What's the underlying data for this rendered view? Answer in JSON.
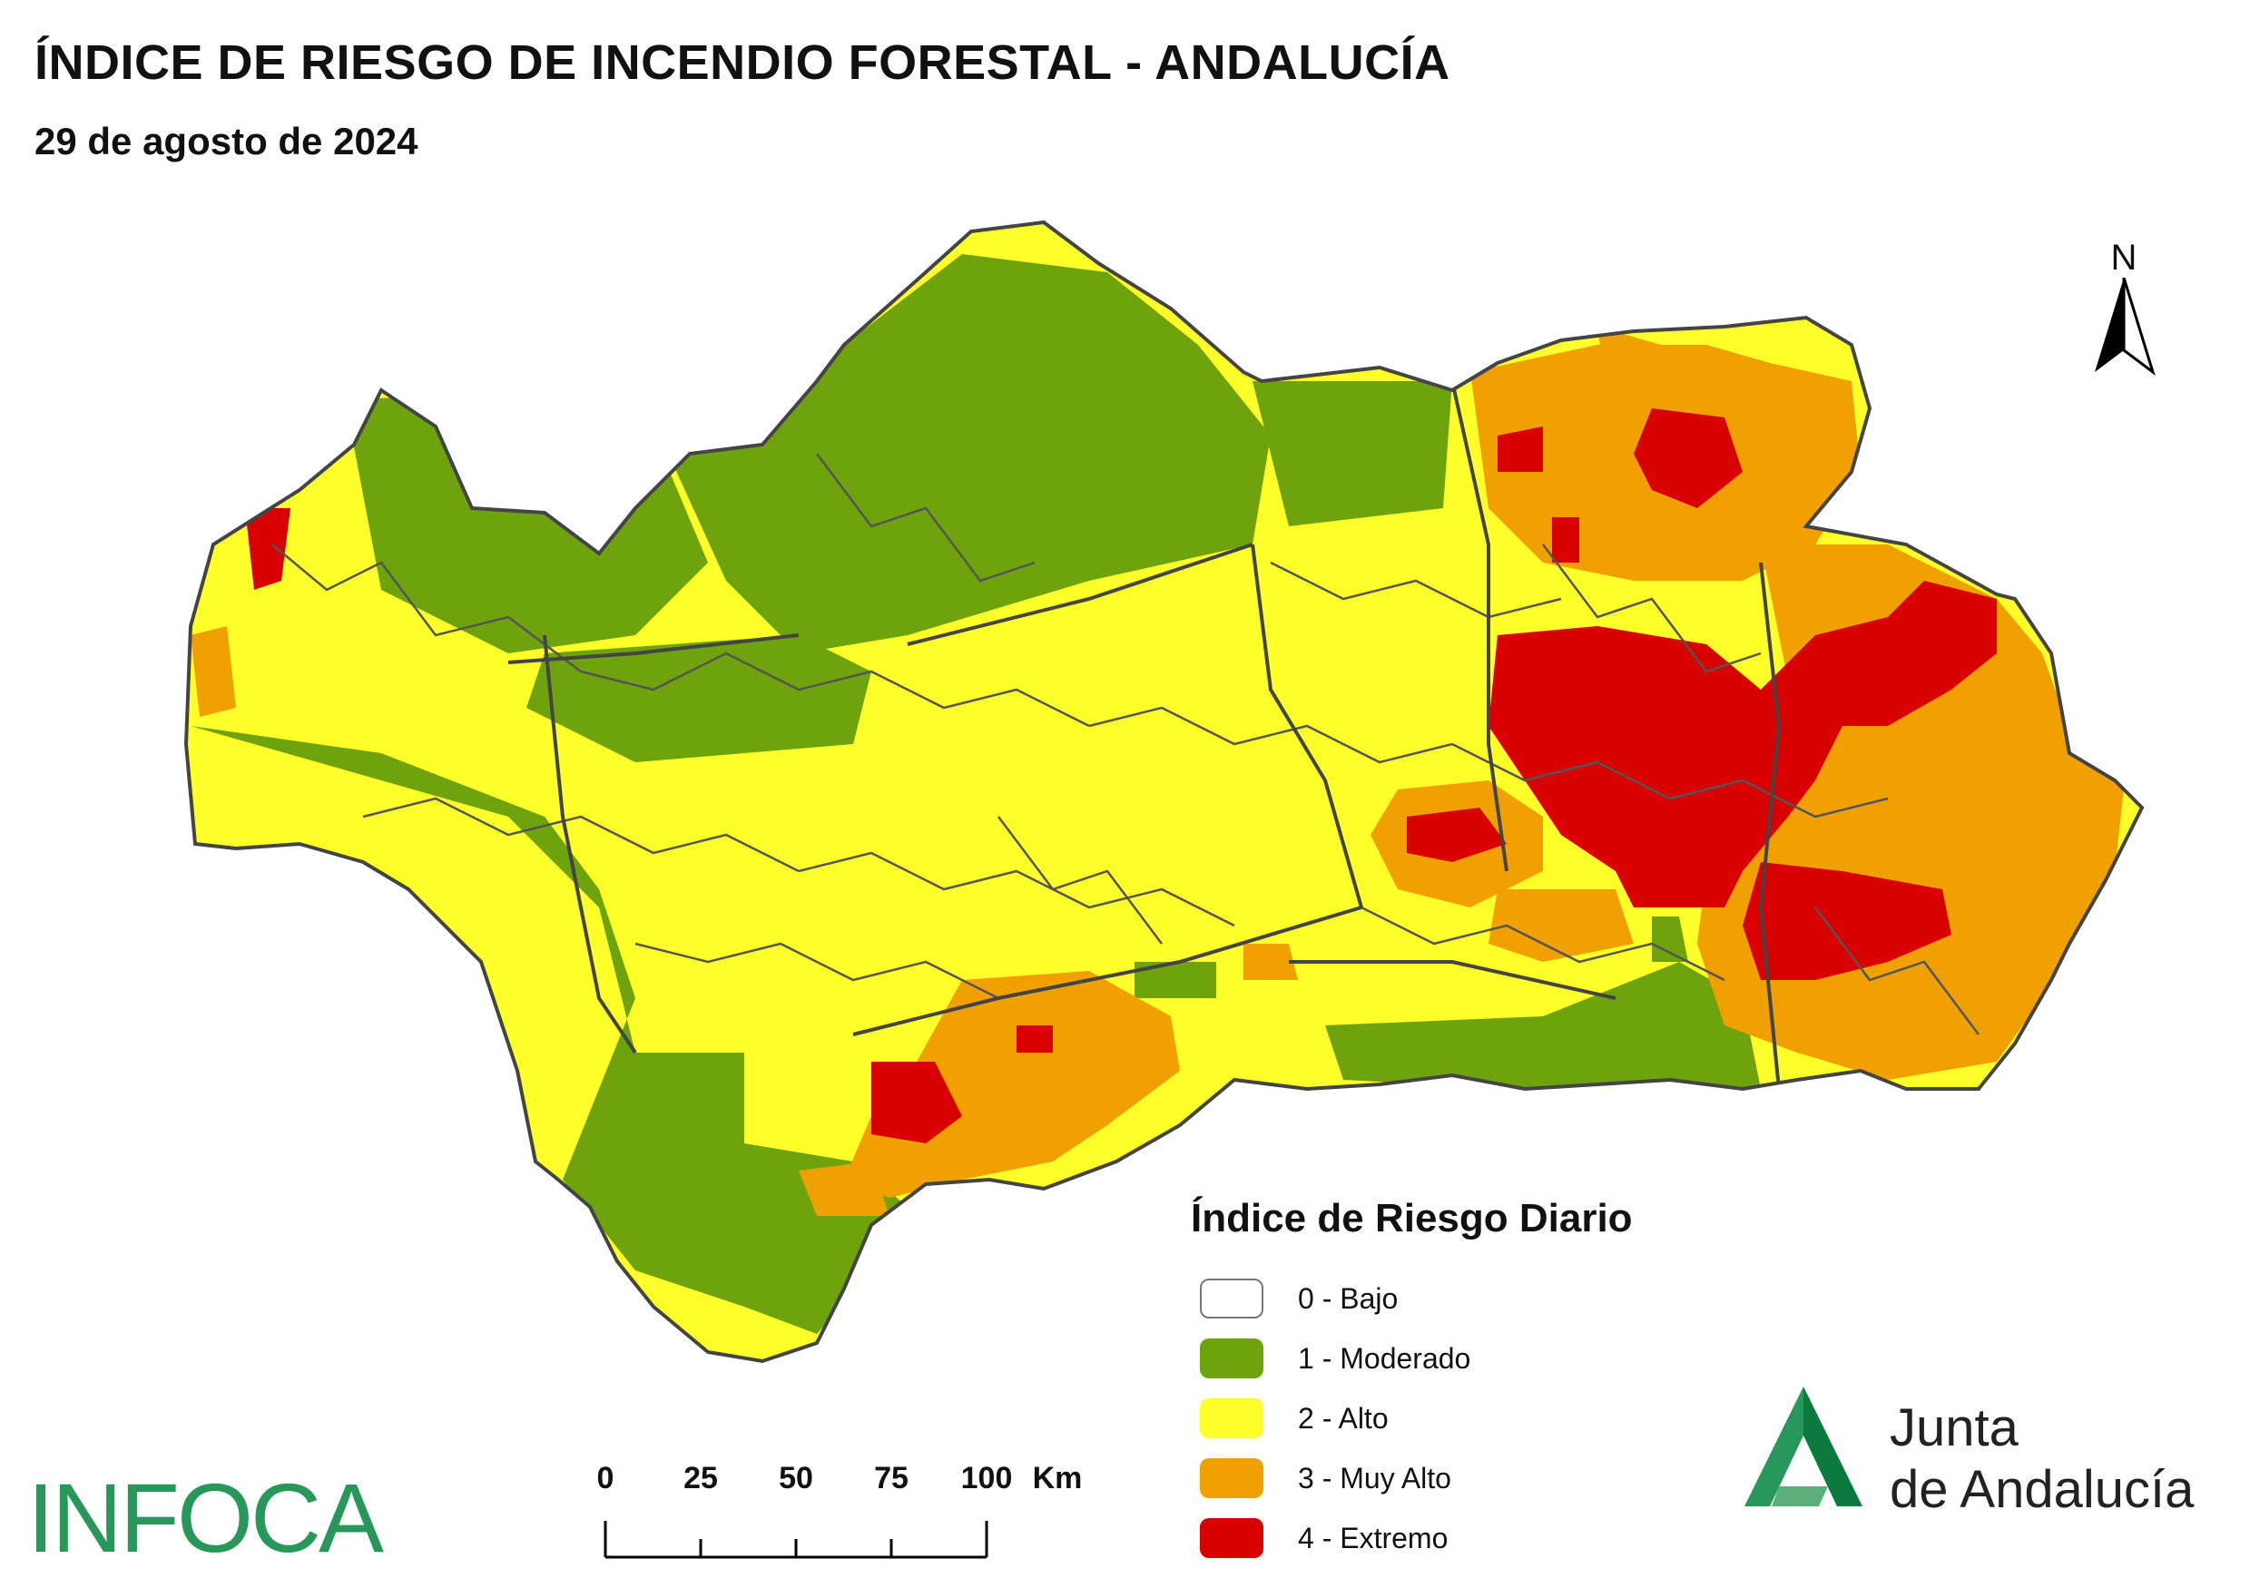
{
  "header": {
    "title": "ÍNDICE DE RIESGO DE INCENDIO FORESTAL - ANDALUCÍA",
    "date": "29 de agosto de 2024"
  },
  "north_arrow": {
    "label": "N"
  },
  "legend": {
    "title": "Índice de Riesgo Diario",
    "items": [
      {
        "label": "0 - Bajo",
        "color": "#ffffff"
      },
      {
        "label": "1 - Moderado",
        "color": "#6fa30e"
      },
      {
        "label": "2 - Alto",
        "color": "#ffff2a"
      },
      {
        "label": "3 - Muy Alto",
        "color": "#f0a000"
      },
      {
        "label": "4 - Extremo",
        "color": "#d90000"
      }
    ]
  },
  "scale_bar": {
    "ticks": [
      "0",
      "25",
      "50",
      "75",
      "100"
    ],
    "unit": "Km"
  },
  "logos": {
    "infoca": "INFOCA",
    "junta_line1": "Junta",
    "junta_line2": "de Andalucía"
  },
  "colors": {
    "moderado": "#6fa30e",
    "alto": "#ffff2a",
    "muy_alto": "#f0a000",
    "extremo": "#d90000",
    "boundary": "#555555",
    "brand_green": "#27975a"
  }
}
